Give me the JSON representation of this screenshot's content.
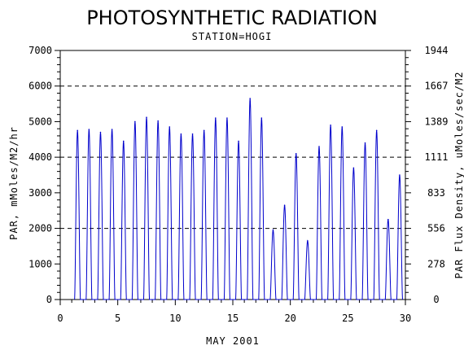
{
  "chart_data": {
    "type": "line",
    "title": "PHOTOSYNTHETIC RADIATION",
    "subtitle": "STATION=HOGI",
    "xlabel": "MAY 2001",
    "ylabel": "PAR, mMoles/M2/hr",
    "y2label": "PAR Flux Density, uMoles/sec/M2",
    "xlim": [
      0,
      30
    ],
    "ylim": [
      0,
      7000
    ],
    "x_ticks": [
      0,
      5,
      10,
      15,
      20,
      25,
      30
    ],
    "y_ticks": [
      0,
      1000,
      2000,
      3000,
      4000,
      5000,
      6000,
      7000
    ],
    "y2_ticks": [
      "0",
      "278",
      "556",
      "833",
      "1111",
      "1389",
      "1667",
      "1944"
    ],
    "gridlines_dashed_at": [
      2000,
      4000,
      6000
    ],
    "line_color": "#0000cc",
    "series": [
      {
        "daily_peaks": [
          {
            "x": 1.5,
            "y": 4750
          },
          {
            "x": 2.5,
            "y": 4780
          },
          {
            "x": 3.5,
            "y": 4700
          },
          {
            "x": 4.5,
            "y": 4780
          },
          {
            "x": 5.5,
            "y": 4450
          },
          {
            "x": 6.5,
            "y": 5000
          },
          {
            "x": 7.5,
            "y": 5120
          },
          {
            "x": 8.5,
            "y": 5020
          },
          {
            "x": 9.5,
            "y": 4850
          },
          {
            "x": 10.5,
            "y": 4650
          },
          {
            "x": 11.5,
            "y": 4650
          },
          {
            "x": 12.5,
            "y": 4750
          },
          {
            "x": 13.5,
            "y": 5100
          },
          {
            "x": 14.5,
            "y": 5100
          },
          {
            "x": 15.5,
            "y": 4450
          },
          {
            "x": 16.5,
            "y": 5650
          },
          {
            "x": 17.5,
            "y": 5100
          },
          {
            "x": 18.5,
            "y": 1950
          },
          {
            "x": 19.5,
            "y": 2650
          },
          {
            "x": 20.5,
            "y": 4100
          },
          {
            "x": 21.5,
            "y": 1650
          },
          {
            "x": 22.5,
            "y": 4300
          },
          {
            "x": 23.5,
            "y": 4900
          },
          {
            "x": 24.5,
            "y": 4850
          },
          {
            "x": 25.5,
            "y": 3700
          },
          {
            "x": 26.5,
            "y": 4400
          },
          {
            "x": 27.5,
            "y": 4750
          },
          {
            "x": 28.5,
            "y": 2250
          },
          {
            "x": 29.5,
            "y": 3500
          }
        ]
      }
    ]
  }
}
